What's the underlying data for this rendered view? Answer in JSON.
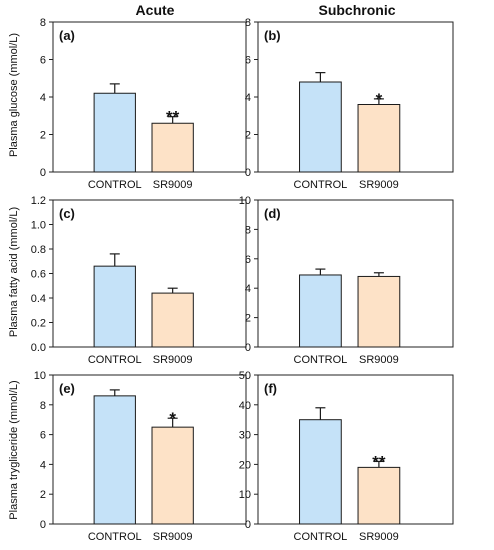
{
  "figure": {
    "column_titles": [
      "Acute",
      "Subchronic"
    ],
    "ylabels": [
      "Plasma glucose (mmol/L)",
      "Plasma fatty acid (mmol/L)",
      "Plasma trygliceride (mmol/L)"
    ],
    "bar_colors": [
      "#c5e2f8",
      "#fde2c7"
    ]
  },
  "chart_data": [
    {
      "panel": "(a)",
      "type": "bar",
      "categories": [
        "CONTROL",
        "SR9009"
      ],
      "values": [
        4.2,
        2.6
      ],
      "errors": [
        0.5,
        0.35
      ],
      "annotations": [
        "",
        "**"
      ],
      "ylabel": "Plasma glucose (mmol/L)",
      "ylim": [
        0,
        8
      ],
      "yticks": [
        0,
        2,
        4,
        6,
        8
      ],
      "yticklabels": [
        "0",
        "2",
        "4",
        "6",
        "8"
      ]
    },
    {
      "panel": "(b)",
      "type": "bar",
      "categories": [
        "CONTROL",
        "SR9009"
      ],
      "values": [
        4.8,
        3.6
      ],
      "errors": [
        0.5,
        0.3
      ],
      "annotations": [
        "",
        "*"
      ],
      "ylabel": "",
      "ylim": [
        0,
        8
      ],
      "yticks": [
        0,
        2,
        4,
        6,
        8
      ],
      "yticklabels": [
        "0",
        "2",
        "4",
        "6",
        "8"
      ]
    },
    {
      "panel": "(c)",
      "type": "bar",
      "categories": [
        "CONTROL",
        "SR9009"
      ],
      "values": [
        0.66,
        0.44
      ],
      "errors": [
        0.1,
        0.04
      ],
      "annotations": [
        "",
        ""
      ],
      "ylabel": "Plasma fatty acid (mmol/L)",
      "ylim": [
        0,
        1.2
      ],
      "yticks": [
        0,
        0.2,
        0.4,
        0.6,
        0.8,
        1.0,
        1.2
      ],
      "yticklabels": [
        "0.0",
        "0.2",
        "0.4",
        "0.6",
        "0.8",
        "1.0",
        "1.2"
      ]
    },
    {
      "panel": "(d)",
      "type": "bar",
      "categories": [
        "CONTROL",
        "SR9009"
      ],
      "values": [
        4.9,
        4.8
      ],
      "errors": [
        0.4,
        0.25
      ],
      "annotations": [
        "",
        ""
      ],
      "ylabel": "",
      "ylim": [
        0,
        10
      ],
      "yticks": [
        0,
        2,
        4,
        6,
        8,
        10
      ],
      "yticklabels": [
        "0",
        "2",
        "4",
        "6",
        "8",
        "10"
      ]
    },
    {
      "panel": "(e)",
      "type": "bar",
      "categories": [
        "CONTROL",
        "SR9009"
      ],
      "values": [
        8.6,
        6.5
      ],
      "errors": [
        0.4,
        0.6
      ],
      "annotations": [
        "",
        "*"
      ],
      "ylabel": "Plasma trygliceride (mmol/L)",
      "ylim": [
        0,
        10
      ],
      "yticks": [
        0,
        2,
        4,
        6,
        8,
        10
      ],
      "yticklabels": [
        "0",
        "2",
        "4",
        "6",
        "8",
        "10"
      ]
    },
    {
      "panel": "(f)",
      "type": "bar",
      "categories": [
        "CONTROL",
        "SR9009"
      ],
      "values": [
        35,
        19
      ],
      "errors": [
        4,
        2
      ],
      "annotations": [
        "",
        "**"
      ],
      "ylabel": "",
      "ylim": [
        0,
        50
      ],
      "yticks": [
        0,
        10,
        20,
        30,
        40,
        50
      ],
      "yticklabels": [
        "0",
        "10",
        "20",
        "30",
        "40",
        "50"
      ]
    }
  ]
}
